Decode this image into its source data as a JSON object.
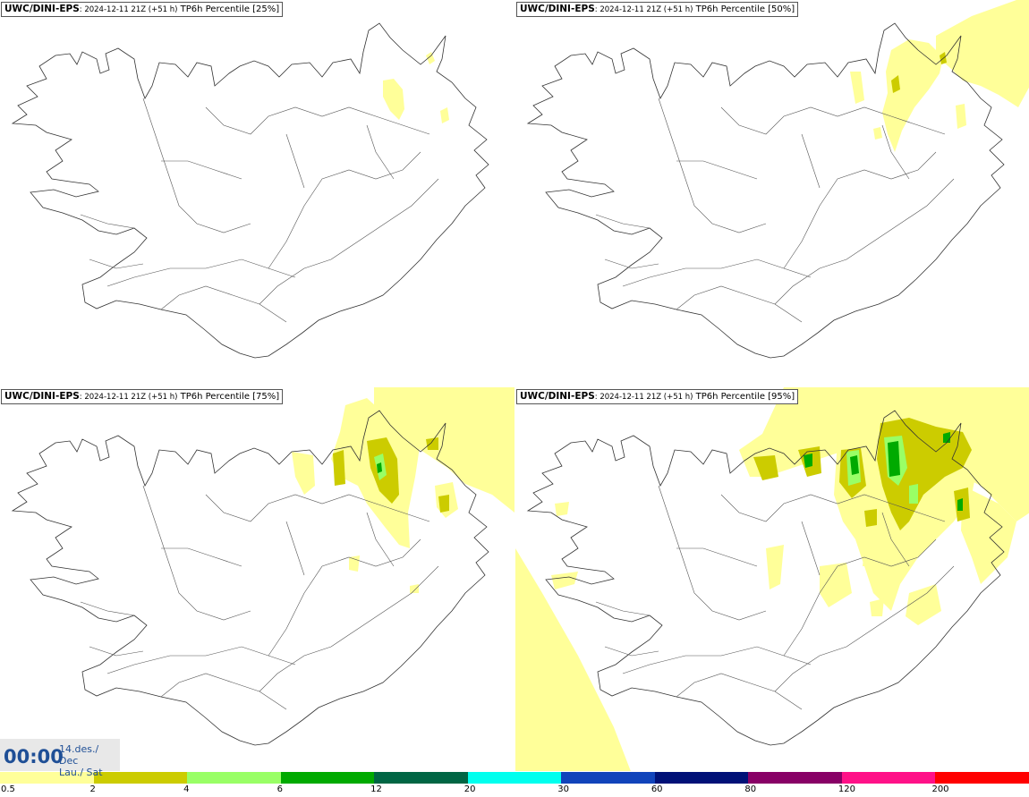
{
  "panels": [
    {
      "model": "UWC/DINI-EPS",
      "run": ": 2024-12-11 21Z (+51 h)",
      "field": " TP6h Percentile [25%]"
    },
    {
      "model": "UWC/DINI-EPS",
      "run": ": 2024-12-11 21Z (+51 h)",
      "field": " TP6h Percentile [50%]"
    },
    {
      "model": "UWC/DINI-EPS",
      "run": ": 2024-12-11 21Z (+51 h)",
      "field": " TP6h Percentile [75%]"
    },
    {
      "model": "UWC/DINI-EPS",
      "run": ": 2024-12-11 21Z (+51 h)",
      "field": " TP6h Percentile [95%]"
    }
  ],
  "valid_time": {
    "clock": "00:00",
    "date": "14.des./ Dec",
    "day": "Lau./ Sat"
  },
  "legend": {
    "colors": [
      "#ffff99",
      "#cccc00",
      "#99ff66",
      "#00aa00",
      "#006644",
      "#00ffee",
      "#1144bb",
      "#001177",
      "#880066",
      "#ff1188",
      "#ff0000"
    ],
    "labels": [
      "0.5",
      "2",
      "4",
      "6",
      "12",
      "20",
      "30",
      "60",
      "80",
      "120",
      "200"
    ]
  }
}
